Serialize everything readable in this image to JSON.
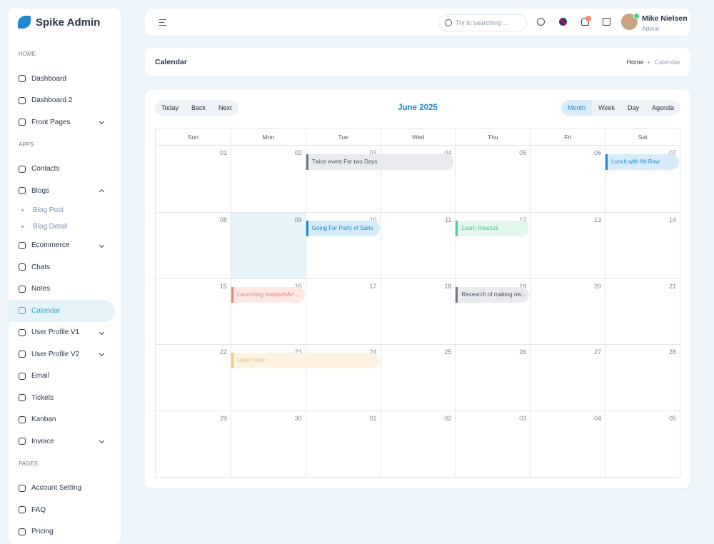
{
  "sidebar": {
    "brand": "Spike Admin",
    "items": [
      {
        "type": "heading",
        "label": "HOME"
      },
      {
        "type": "item",
        "label": "Dashboard"
      },
      {
        "type": "item",
        "label": "Dashboard 2"
      },
      {
        "type": "item",
        "label": "Front Pages",
        "chevron": "down"
      },
      {
        "type": "heading",
        "label": "APPS"
      },
      {
        "type": "item",
        "label": "Contacts"
      },
      {
        "type": "item",
        "label": "Blogs",
        "chevron": "up"
      },
      {
        "type": "sub",
        "label": "Blog Post"
      },
      {
        "type": "sub",
        "label": "Blog Detail"
      },
      {
        "type": "item",
        "label": "Ecommerce",
        "chevron": "down"
      },
      {
        "type": "item",
        "label": "Chats"
      },
      {
        "type": "item",
        "label": "Notes"
      },
      {
        "type": "item",
        "label": "Calendar",
        "active": true
      },
      {
        "type": "item",
        "label": "User Profile V1",
        "chevron": "down"
      },
      {
        "type": "item",
        "label": "User Profile V2",
        "chevron": "down"
      },
      {
        "type": "item",
        "label": "Email"
      },
      {
        "type": "item",
        "label": "Tickets"
      },
      {
        "type": "item",
        "label": "Kanban"
      },
      {
        "type": "item",
        "label": "Invoice",
        "chevron": "down"
      },
      {
        "type": "heading",
        "label": "PAGES"
      },
      {
        "type": "item",
        "label": "Account Setting"
      },
      {
        "type": "item",
        "label": "FAQ"
      },
      {
        "type": "item",
        "label": "Pricing"
      }
    ]
  },
  "header": {
    "search_placeholder": "Try to searching ...",
    "user": {
      "name": "Mike Nielsen",
      "role": "Admin"
    }
  },
  "breadcrumb": {
    "title": "Calendar",
    "trail": [
      "Home",
      "Calendar"
    ]
  },
  "calendar": {
    "nav": [
      "Today",
      "Back",
      "Next"
    ],
    "title": "June 2025",
    "views": [
      {
        "label": "Month",
        "active": true
      },
      {
        "label": "Week"
      },
      {
        "label": "Day"
      },
      {
        "label": "Agenda"
      }
    ],
    "weekdays": [
      "Sun",
      "Mon",
      "Tue",
      "Wed",
      "Thu",
      "Fri",
      "Sat"
    ],
    "weeks": [
      {
        "days": [
          "01",
          "02",
          "03",
          "04",
          "05",
          "06",
          "07"
        ],
        "events": [
          {
            "title": "Twice event For two Days",
            "start": "03",
            "end": "04",
            "color": "gray"
          },
          {
            "title": "Lunch with Mr.Raw",
            "start": "07",
            "end": "07",
            "color": "blue"
          }
        ]
      },
      {
        "days": [
          "08",
          "09",
          "10",
          "11",
          "12",
          "13",
          "14"
        ],
        "today": "09",
        "events": [
          {
            "title": "Going For Party of Sahs",
            "start": "10",
            "end": "10",
            "color": "blue"
          },
          {
            "title": "Learn ReactJs",
            "start": "12",
            "end": "12",
            "color": "green"
          }
        ]
      },
      {
        "days": [
          "15",
          "16",
          "17",
          "18",
          "19",
          "20",
          "21"
        ],
        "events": [
          {
            "title": "Launching matdashArt ...",
            "start": "16",
            "end": "16",
            "color": "red"
          },
          {
            "title": "Research of making ow...",
            "start": "19",
            "end": "19",
            "color": "gray"
          }
        ]
      },
      {
        "days": [
          "22",
          "23",
          "24",
          "25",
          "26",
          "27",
          "28"
        ],
        "events": [
          {
            "title": "Learn Ionic",
            "start": "23",
            "end": "24",
            "color": "yellow"
          }
        ]
      },
      {
        "days": [
          "29",
          "30",
          "01",
          "02",
          "03",
          "04",
          "05"
        ],
        "events": []
      }
    ]
  }
}
